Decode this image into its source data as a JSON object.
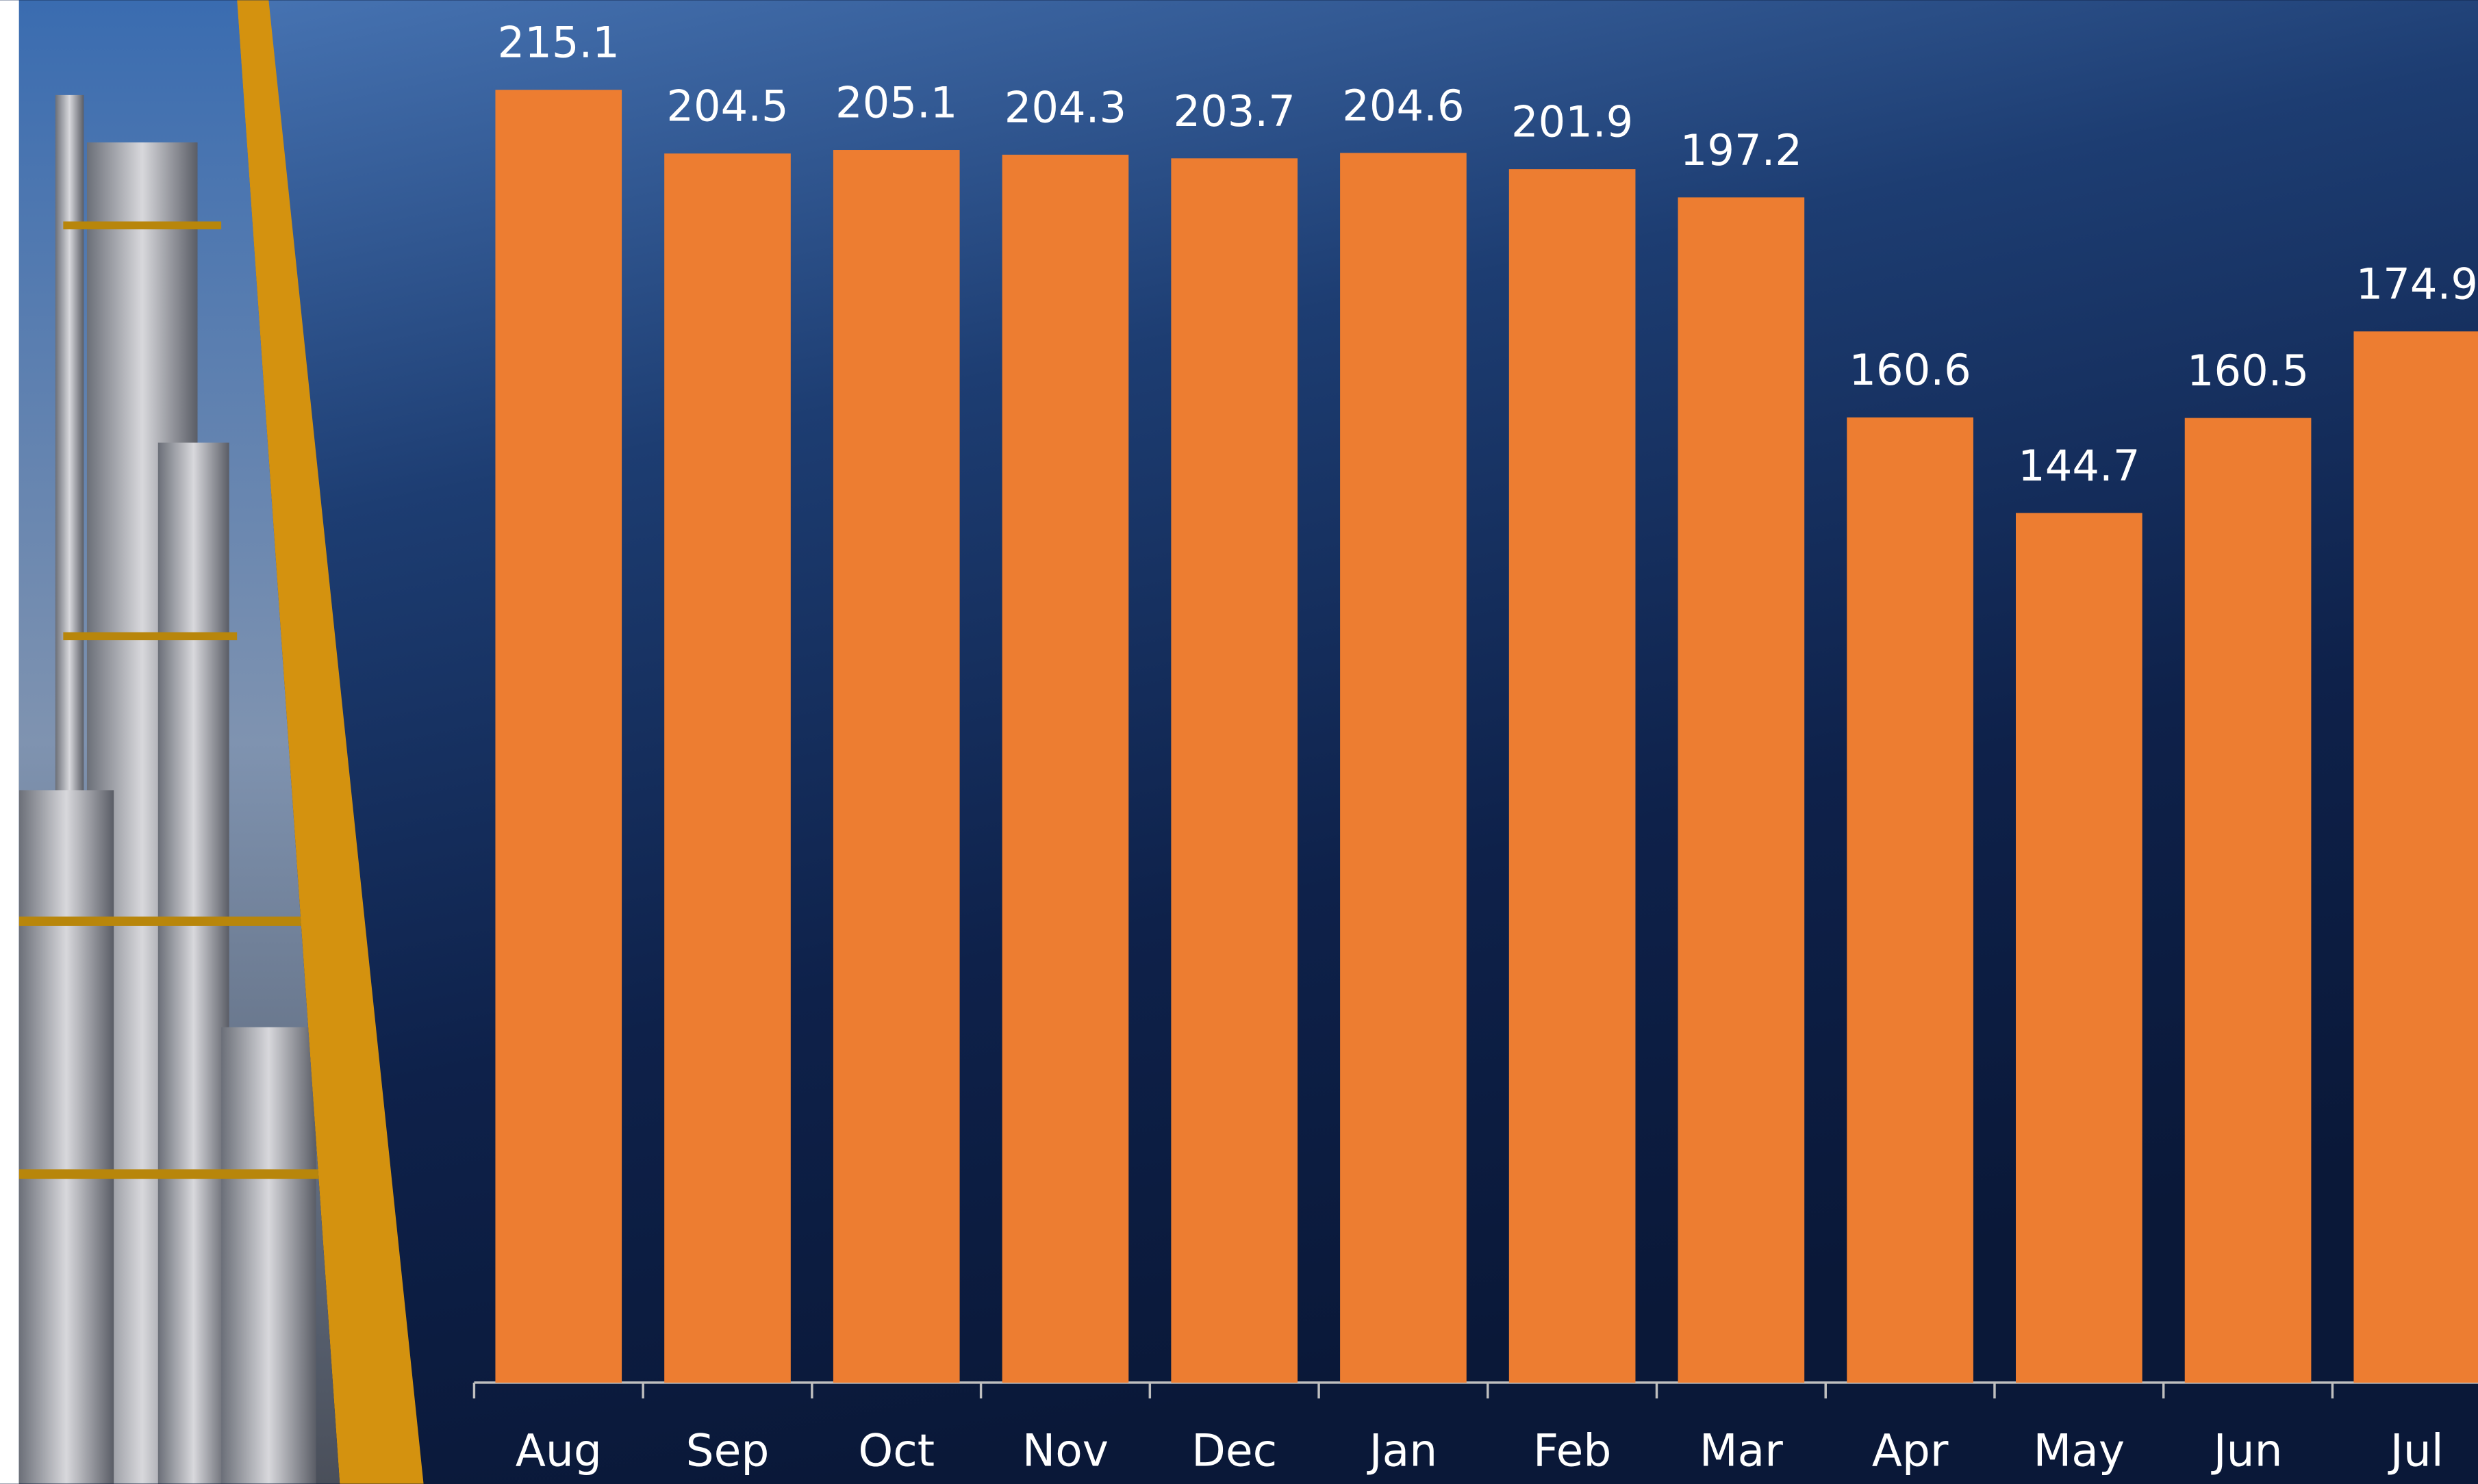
{
  "chart_data": {
    "type": "bar",
    "categories": [
      "Aug",
      "Sep",
      "Oct",
      "Nov",
      "Dec",
      "Jan",
      "Feb",
      "Mar",
      "Apr",
      "May",
      "Jun",
      "Jul"
    ],
    "values": [
      215.1,
      204.5,
      205.1,
      204.3,
      203.7,
      204.6,
      201.9,
      197.2,
      160.6,
      144.7,
      160.5,
      174.9
    ],
    "color": "#ed7d31",
    "ylim": [
      0,
      230
    ]
  }
}
